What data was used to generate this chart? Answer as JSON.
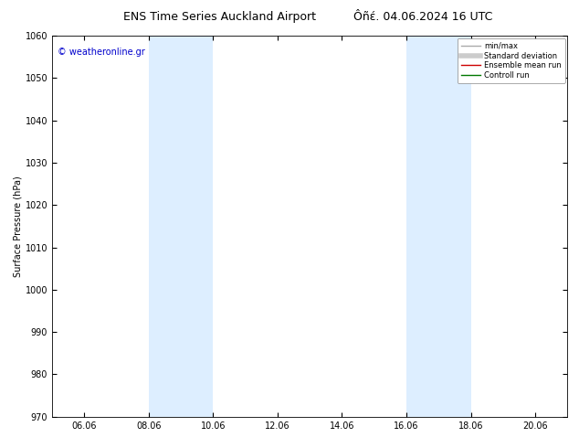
{
  "title1": "ENS Time Series Auckland Airport",
  "title2": "Ôñέ. 04.06.2024 16 UTC",
  "ylabel": "Surface Pressure (hPa)",
  "ylim": [
    970,
    1060
  ],
  "yticks": [
    970,
    980,
    990,
    1000,
    1010,
    1020,
    1030,
    1040,
    1050,
    1060
  ],
  "xtick_labels": [
    "06.06",
    "08.06",
    "10.06",
    "12.06",
    "14.06",
    "16.06",
    "18.06",
    "20.06"
  ],
  "xtick_positions": [
    1,
    3,
    5,
    7,
    9,
    11,
    13,
    15
  ],
  "xlim": [
    0,
    16
  ],
  "shaded_bands": [
    {
      "x_start": 3,
      "x_end": 5
    },
    {
      "x_start": 11,
      "x_end": 13
    }
  ],
  "shaded_color": "#ddeeff",
  "watermark_text": "© weatheronline.gr",
  "watermark_color": "#0000cc",
  "legend_items": [
    {
      "label": "min/max",
      "color": "#aaaaaa",
      "lw": 1.0
    },
    {
      "label": "Standard deviation",
      "color": "#cccccc",
      "lw": 4.0
    },
    {
      "label": "Ensemble mean run",
      "color": "#cc0000",
      "lw": 1.0
    },
    {
      "label": "Controll run",
      "color": "#007700",
      "lw": 1.0
    }
  ],
  "bg_color": "#ffffff",
  "title_fontsize": 9,
  "ylabel_fontsize": 7,
  "tick_fontsize": 7,
  "watermark_fontsize": 7,
  "legend_fontsize": 6
}
